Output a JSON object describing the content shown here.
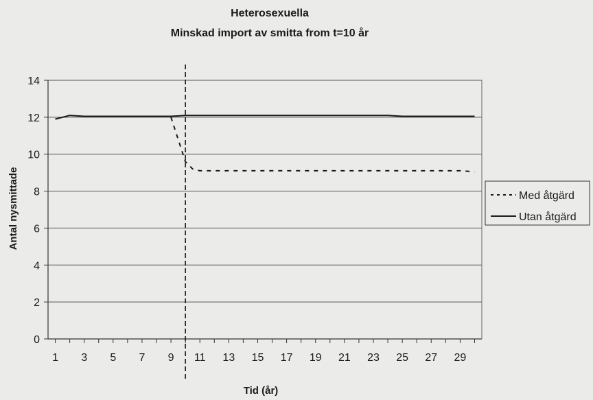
{
  "chart_data": {
    "type": "line",
    "title": "Heterosexuella",
    "subtitle": "Minskad import av smitta from t=10 år",
    "xlabel": "Tid (år)",
    "ylabel": "Antal nysmittade",
    "xlim": [
      0.5,
      30.5
    ],
    "ylim": [
      0,
      14
    ],
    "x_tick_labels": [
      "1",
      "3",
      "5",
      "7",
      "9",
      "11",
      "13",
      "15",
      "17",
      "19",
      "21",
      "23",
      "25",
      "27",
      "29"
    ],
    "y_tick_labels": [
      "0",
      "2",
      "4",
      "6",
      "8",
      "10",
      "12",
      "14"
    ],
    "grid": "horizontal",
    "legend_position": "right",
    "annotation": {
      "type": "vertical-dashed-line",
      "x": 10
    },
    "series": [
      {
        "name": "Med åtgärd",
        "style": "dashed",
        "color": "#1a1a1a",
        "x": [
          9,
          9.5,
          10,
          10.5,
          11,
          12,
          13,
          14,
          15,
          16,
          17,
          18,
          19,
          20,
          21,
          22,
          23,
          24,
          25,
          26,
          27,
          28,
          29,
          30
        ],
        "values": [
          12.0,
          10.8,
          9.6,
          9.2,
          9.1,
          9.1,
          9.1,
          9.1,
          9.1,
          9.1,
          9.1,
          9.1,
          9.1,
          9.1,
          9.1,
          9.1,
          9.1,
          9.1,
          9.1,
          9.1,
          9.1,
          9.1,
          9.1,
          9.05
        ]
      },
      {
        "name": "Utan åtgärd",
        "style": "solid",
        "color": "#1a1a1a",
        "x": [
          1,
          2,
          3,
          4,
          5,
          6,
          7,
          8,
          9,
          10,
          11,
          12,
          13,
          14,
          15,
          16,
          17,
          18,
          19,
          20,
          21,
          22,
          23,
          24,
          25,
          26,
          27,
          28,
          29,
          30
        ],
        "values": [
          11.9,
          12.1,
          12.05,
          12.05,
          12.05,
          12.05,
          12.05,
          12.05,
          12.05,
          12.1,
          12.1,
          12.1,
          12.1,
          12.1,
          12.1,
          12.1,
          12.1,
          12.1,
          12.1,
          12.1,
          12.1,
          12.1,
          12.1,
          12.1,
          12.05,
          12.05,
          12.05,
          12.05,
          12.05,
          12.05
        ]
      }
    ]
  }
}
